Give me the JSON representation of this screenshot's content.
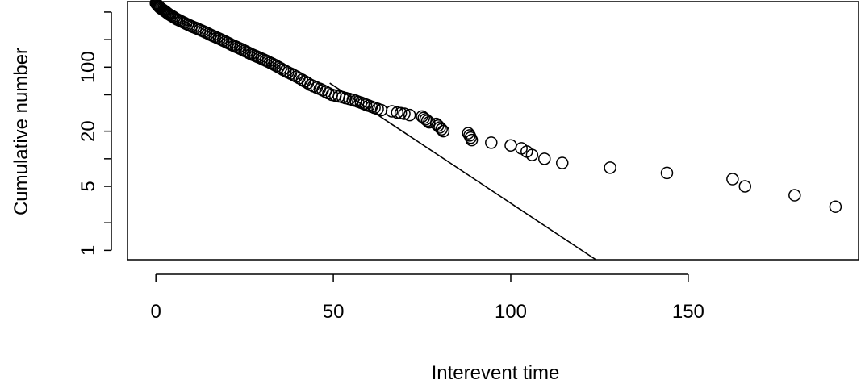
{
  "chart_data": {
    "type": "scatter",
    "xlabel": "Interevent time",
    "ylabel": "Cumulative number",
    "xlim": [
      -8,
      198
    ],
    "ylim": [
      0.79,
      520
    ],
    "y_scale": "log",
    "x_ticks": [
      0,
      50,
      100,
      150
    ],
    "y_ticks_labeled": [
      1,
      5,
      20,
      100
    ],
    "y_ticks_minor": [
      2,
      10,
      50,
      200,
      400
    ],
    "grid": false,
    "legend": "none",
    "fit_line": {
      "x": [
        49,
        124
      ],
      "y": [
        67,
        0.79
      ]
    },
    "points": [
      [
        0.0,
        500
      ],
      [
        0.2,
        490
      ],
      [
        0.4,
        480
      ],
      [
        0.6,
        470
      ],
      [
        0.8,
        460
      ],
      [
        1.0,
        452
      ],
      [
        1.2,
        444
      ],
      [
        1.5,
        436
      ],
      [
        1.8,
        428
      ],
      [
        2.1,
        420
      ],
      [
        2.4,
        412
      ],
      [
        2.7,
        404
      ],
      [
        3.0,
        396
      ],
      [
        3.3,
        388
      ],
      [
        3.6,
        380
      ],
      [
        4.0,
        372
      ],
      [
        4.4,
        364
      ],
      [
        4.8,
        356
      ],
      [
        5.2,
        348
      ],
      [
        5.6,
        340
      ],
      [
        6.0,
        333
      ],
      [
        6.5,
        326
      ],
      [
        7.0,
        319
      ],
      [
        7.5,
        312
      ],
      [
        8.0,
        305
      ],
      [
        8.5,
        298
      ],
      [
        9.0,
        292
      ],
      [
        9.5,
        286
      ],
      [
        10.0,
        280
      ],
      [
        10.6,
        274
      ],
      [
        11.2,
        268
      ],
      [
        11.8,
        262
      ],
      [
        12.4,
        256
      ],
      [
        13.0,
        250
      ],
      [
        13.6,
        244
      ],
      [
        14.2,
        238
      ],
      [
        14.8,
        232
      ],
      [
        15.4,
        226
      ],
      [
        16.0,
        220
      ],
      [
        16.6,
        215
      ],
      [
        17.2,
        210
      ],
      [
        17.8,
        205
      ],
      [
        18.4,
        200
      ],
      [
        19.0,
        195
      ],
      [
        19.6,
        190
      ],
      [
        20.2,
        185
      ],
      [
        20.8,
        180
      ],
      [
        21.4,
        175
      ],
      [
        22.0,
        171
      ],
      [
        22.6,
        167
      ],
      [
        23.2,
        163
      ],
      [
        23.8,
        159
      ],
      [
        24.4,
        155
      ],
      [
        25.0,
        151
      ],
      [
        25.6,
        147
      ],
      [
        26.2,
        143
      ],
      [
        26.8,
        139
      ],
      [
        27.4,
        136
      ],
      [
        28.0,
        133
      ],
      [
        28.6,
        130
      ],
      [
        29.2,
        127
      ],
      [
        29.8,
        124
      ],
      [
        30.4,
        121
      ],
      [
        31.0,
        118
      ],
      [
        31.6,
        115
      ],
      [
        32.2,
        112
      ],
      [
        32.8,
        109
      ],
      [
        33.4,
        106
      ],
      [
        34.0,
        103
      ],
      [
        34.6,
        100
      ],
      [
        35.2,
        97
      ],
      [
        35.8,
        94
      ],
      [
        36.5,
        91
      ],
      [
        37.2,
        88
      ],
      [
        38.0,
        85
      ],
      [
        38.8,
        82
      ],
      [
        39.6,
        79
      ],
      [
        40.4,
        76
      ],
      [
        41.2,
        73
      ],
      [
        42.0,
        70
      ],
      [
        42.8,
        67
      ],
      [
        43.6,
        64
      ],
      [
        44.4,
        62
      ],
      [
        45.3,
        60
      ],
      [
        46.2,
        58
      ],
      [
        47.0,
        56
      ],
      [
        47.8,
        54
      ],
      [
        48.6,
        52
      ],
      [
        49.6,
        50
      ],
      [
        50.6,
        49
      ],
      [
        51.6,
        48
      ],
      [
        52.6,
        47
      ],
      [
        53.5,
        46
      ],
      [
        54.5,
        45
      ],
      [
        55.5,
        44
      ],
      [
        56.3,
        43
      ],
      [
        57.0,
        42
      ],
      [
        57.8,
        41
      ],
      [
        58.5,
        40
      ],
      [
        59.2,
        39
      ],
      [
        60.0,
        38
      ],
      [
        60.8,
        37
      ],
      [
        61.6,
        36
      ],
      [
        62.5,
        35
      ],
      [
        63.5,
        34
      ],
      [
        66.5,
        33
      ],
      [
        68.0,
        32
      ],
      [
        69.0,
        31.5
      ],
      [
        70.0,
        31
      ],
      [
        71.5,
        30
      ],
      [
        75.0,
        29
      ],
      [
        75.5,
        28
      ],
      [
        76.0,
        27
      ],
      [
        76.5,
        26
      ],
      [
        77.0,
        25
      ],
      [
        79.0,
        24
      ],
      [
        79.5,
        23
      ],
      [
        80.0,
        22
      ],
      [
        80.5,
        21
      ],
      [
        81.0,
        20
      ],
      [
        88.0,
        19
      ],
      [
        88.4,
        18
      ],
      [
        88.7,
        17
      ],
      [
        89.0,
        16
      ],
      [
        94.5,
        15
      ],
      [
        100.0,
        14
      ],
      [
        103.0,
        13
      ],
      [
        104.5,
        12
      ],
      [
        106.0,
        11
      ],
      [
        109.5,
        10
      ],
      [
        114.5,
        9
      ],
      [
        128.0,
        8
      ],
      [
        144.0,
        7
      ],
      [
        162.5,
        6
      ],
      [
        166.0,
        5
      ],
      [
        180.0,
        4
      ],
      [
        191.5,
        3
      ]
    ]
  }
}
